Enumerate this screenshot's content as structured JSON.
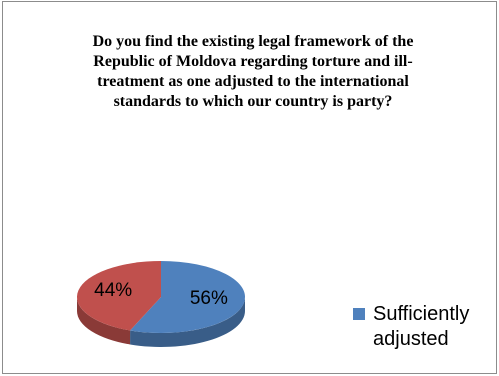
{
  "chart_data": {
    "type": "pie",
    "title": "Do you find the existing legal framework of the Republic of Moldova regarding torture and ill-treatment as one adjusted to the international standards to which our country is party?",
    "slices": [
      {
        "label": "Sufficiently adjusted",
        "value": 56,
        "value_label": "56%",
        "color": "#4f81bd"
      },
      {
        "label": "",
        "value": 44,
        "value_label": "44%",
        "color": "#c0504d"
      }
    ],
    "legend": {
      "position": "right",
      "entries": [
        "Sufficiently adjusted"
      ]
    }
  }
}
